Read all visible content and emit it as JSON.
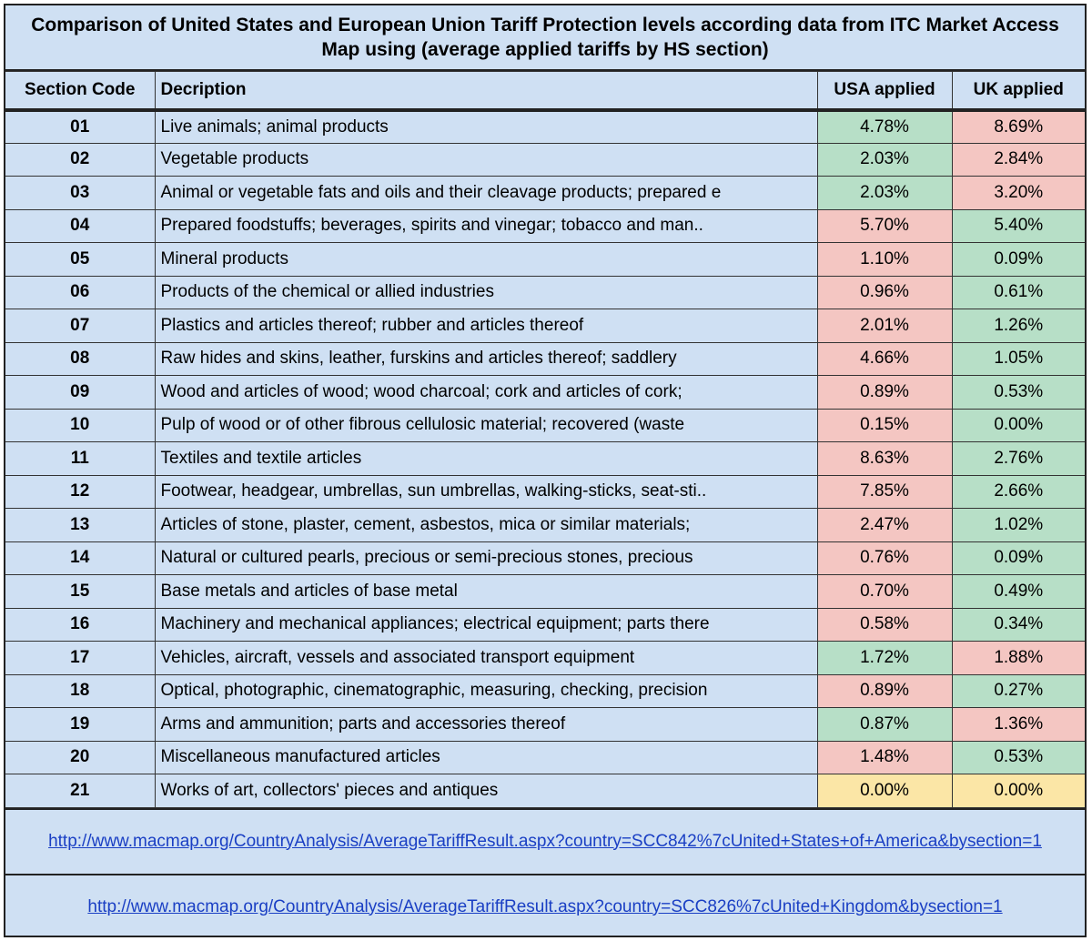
{
  "title": "Comparison of United States and European Union Tariff Protection levels according data from ITC Market Access Map using (average applied tariffs by HS section)",
  "headers": {
    "code": "Section Code",
    "description": "Decription",
    "usa": "USA applied",
    "uk": "UK applied"
  },
  "colors": {
    "green": "#b7dfc7",
    "red": "#f4c6c2",
    "yellow": "#fbe6a6",
    "background": "#cfe0f3",
    "link": "#1a3fc4"
  },
  "rows": [
    {
      "code": "01",
      "desc": "Live animals; animal products",
      "usa": "4.78%",
      "uk": "8.69%",
      "usa_color": "green",
      "uk_color": "red"
    },
    {
      "code": "02",
      "desc": "Vegetable products",
      "usa": "2.03%",
      "uk": "2.84%",
      "usa_color": "green",
      "uk_color": "red"
    },
    {
      "code": "03",
      "desc": "Animal or vegetable fats and oils and their cleavage products; prepared e",
      "usa": "2.03%",
      "uk": "3.20%",
      "usa_color": "green",
      "uk_color": "red"
    },
    {
      "code": "04",
      "desc": "Prepared foodstuffs; beverages, spirits and vinegar; tobacco and man..",
      "usa": "5.70%",
      "uk": "5.40%",
      "usa_color": "red",
      "uk_color": "green"
    },
    {
      "code": "05",
      "desc": "Mineral products",
      "usa": "1.10%",
      "uk": "0.09%",
      "usa_color": "red",
      "uk_color": "green"
    },
    {
      "code": "06",
      "desc": "Products of the chemical or allied industries",
      "usa": "0.96%",
      "uk": "0.61%",
      "usa_color": "red",
      "uk_color": "green"
    },
    {
      "code": "07",
      "desc": "Plastics and articles thereof; rubber and articles thereof",
      "usa": "2.01%",
      "uk": "1.26%",
      "usa_color": "red",
      "uk_color": "green"
    },
    {
      "code": "08",
      "desc": "Raw hides and skins, leather, furskins and articles thereof; saddlery",
      "usa": "4.66%",
      "uk": "1.05%",
      "usa_color": "red",
      "uk_color": "green"
    },
    {
      "code": "09",
      "desc": "Wood and articles of wood; wood charcoal; cork and articles of cork;",
      "usa": "0.89%",
      "uk": "0.53%",
      "usa_color": "red",
      "uk_color": "green"
    },
    {
      "code": "10",
      "desc": "Pulp of wood or of other fibrous cellulosic material; recovered (waste",
      "usa": "0.15%",
      "uk": "0.00%",
      "usa_color": "red",
      "uk_color": "green"
    },
    {
      "code": "11",
      "desc": "Textiles and textile articles",
      "usa": "8.63%",
      "uk": "2.76%",
      "usa_color": "red",
      "uk_color": "green"
    },
    {
      "code": "12",
      "desc": "Footwear, headgear, umbrellas, sun umbrellas, walking-sticks, seat-sti..",
      "usa": "7.85%",
      "uk": "2.66%",
      "usa_color": "red",
      "uk_color": "green"
    },
    {
      "code": "13",
      "desc": "Articles of stone, plaster, cement, asbestos, mica or similar materials;",
      "usa": "2.47%",
      "uk": "1.02%",
      "usa_color": "red",
      "uk_color": "green"
    },
    {
      "code": "14",
      "desc": "Natural or cultured pearls, precious or semi-precious stones, precious",
      "usa": "0.76%",
      "uk": "0.09%",
      "usa_color": "red",
      "uk_color": "green"
    },
    {
      "code": "15",
      "desc": "Base metals and articles of base metal",
      "usa": "0.70%",
      "uk": "0.49%",
      "usa_color": "red",
      "uk_color": "green"
    },
    {
      "code": "16",
      "desc": "Machinery and mechanical appliances; electrical equipment; parts there",
      "usa": "0.58%",
      "uk": "0.34%",
      "usa_color": "red",
      "uk_color": "green"
    },
    {
      "code": "17",
      "desc": "Vehicles, aircraft, vessels and associated transport equipment",
      "usa": "1.72%",
      "uk": "1.88%",
      "usa_color": "green",
      "uk_color": "red"
    },
    {
      "code": "18",
      "desc": "Optical, photographic, cinematographic, measuring, checking, precision",
      "usa": "0.89%",
      "uk": "0.27%",
      "usa_color": "red",
      "uk_color": "green"
    },
    {
      "code": "19",
      "desc": "Arms and ammunition; parts and accessories thereof",
      "usa": "0.87%",
      "uk": "1.36%",
      "usa_color": "green",
      "uk_color": "red"
    },
    {
      "code": "20",
      "desc": "Miscellaneous manufactured articles",
      "usa": "1.48%",
      "uk": "0.53%",
      "usa_color": "red",
      "uk_color": "green"
    },
    {
      "code": "21",
      "desc": "Works of art, collectors' pieces and antiques",
      "usa": "0.00%",
      "uk": "0.00%",
      "usa_color": "yellow",
      "uk_color": "yellow"
    }
  ],
  "links": [
    {
      "text": "http://www.macmap.org/CountryAnalysis/AverageTariffResult.aspx?country=SCC842%7cUnited+States+of+America&bysection=1"
    },
    {
      "text": "http://www.macmap.org/CountryAnalysis/AverageTariffResult.aspx?country=SCC826%7cUnited+Kingdom&bysection=1"
    }
  ]
}
